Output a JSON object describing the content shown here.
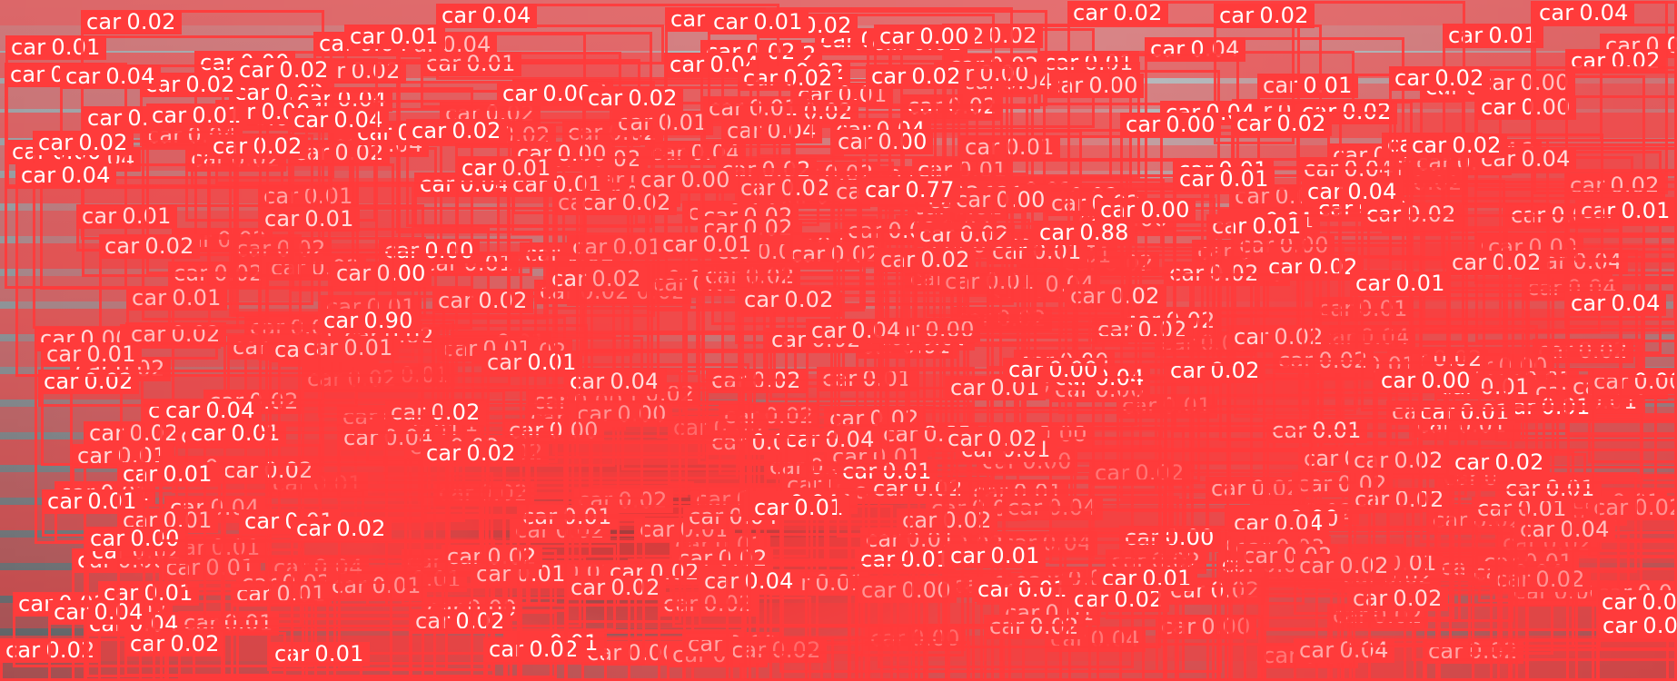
{
  "label_class": "car",
  "colors": {
    "box": "#ff3b3b",
    "label_text": "#ffffff"
  },
  "detections_high": [
    {
      "label": "car",
      "score": "0.90"
    },
    {
      "label": "car",
      "score": "0.88"
    },
    {
      "label": "car",
      "score": "0.77"
    }
  ],
  "detections_low": [
    {
      "label": "car",
      "score": "0.04"
    },
    {
      "label": "car",
      "score": "0.02"
    },
    {
      "label": "car",
      "score": "0.02"
    },
    {
      "label": "car",
      "score": "0.02"
    },
    {
      "label": "car",
      "score": "0.01"
    },
    {
      "label": "car",
      "score": "0.01"
    },
    {
      "label": "car",
      "score": "0.00"
    }
  ]
}
